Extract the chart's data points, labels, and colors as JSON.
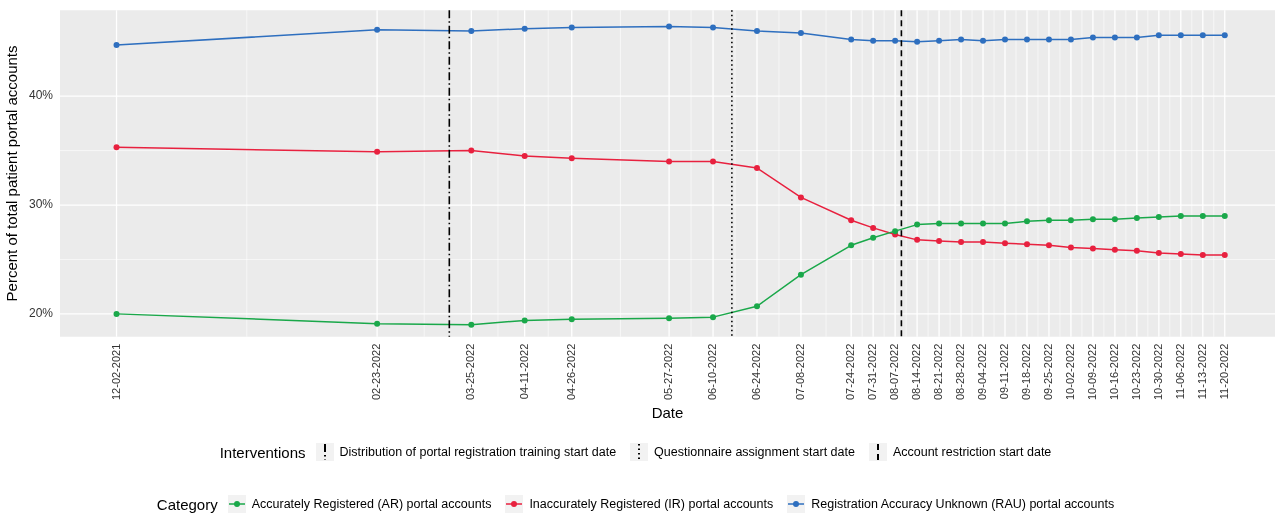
{
  "chart_data": {
    "type": "line",
    "xlabel": "Date",
    "ylabel": "Percent of total patient portal accounts",
    "legend_title": "Category",
    "legend": "bottom",
    "grid": true,
    "marker": "circle",
    "line_style": "solid",
    "annotations": [
      "Interventions"
    ],
    "x": [
      "2021-12-02",
      "2022-02-23",
      "2022-03-25",
      "2022-04-11",
      "2022-04-26",
      "2022-05-27",
      "2022-06-10",
      "2022-06-24",
      "2022-07-08",
      "2022-07-24",
      "2022-07-31",
      "2022-08-07",
      "2022-08-14",
      "2022-08-21",
      "2022-08-28",
      "2022-09-04",
      "2022-09-11",
      "2022-09-18",
      "2022-09-25",
      "2022-10-02",
      "2022-10-09",
      "2022-10-16",
      "2022-10-23",
      "2022-10-30",
      "2022-11-06",
      "2022-11-13",
      "2022-11-20"
    ],
    "xlim": [
      "2021-11-14",
      "2022-12-06"
    ],
    "xticks": [
      {
        "value": "2021-12-02",
        "label": "12-02-2021"
      },
      {
        "value": "2022-02-23",
        "label": "02-23-2022"
      },
      {
        "value": "2022-03-25",
        "label": "03-25-2022"
      },
      {
        "value": "2022-04-11",
        "label": "04-11-2022"
      },
      {
        "value": "2022-04-26",
        "label": "04-26-2022"
      },
      {
        "value": "2022-05-27",
        "label": "05-27-2022"
      },
      {
        "value": "2022-06-10",
        "label": "06-10-2022"
      },
      {
        "value": "2022-06-24",
        "label": "06-24-2022"
      },
      {
        "value": "2022-07-08",
        "label": "07-08-2022"
      },
      {
        "value": "2022-07-24",
        "label": "07-24-2022"
      },
      {
        "value": "2022-07-31",
        "label": "07-31-2022"
      },
      {
        "value": "2022-08-07",
        "label": "08-07-2022"
      },
      {
        "value": "2022-08-14",
        "label": "08-14-2022"
      },
      {
        "value": "2022-08-21",
        "label": "08-21-2022"
      },
      {
        "value": "2022-08-28",
        "label": "08-28-2022"
      },
      {
        "value": "2022-09-04",
        "label": "09-04-2022"
      },
      {
        "value": "2022-09-11",
        "label": "09-11-2022"
      },
      {
        "value": "2022-09-18",
        "label": "09-18-2022"
      },
      {
        "value": "2022-09-25",
        "label": "09-25-2022"
      },
      {
        "value": "2022-10-02",
        "label": "10-02-2022"
      },
      {
        "value": "2022-10-09",
        "label": "10-09-2022"
      },
      {
        "value": "2022-10-16",
        "label": "10-16-2022"
      },
      {
        "value": "2022-10-23",
        "label": "10-23-2022"
      },
      {
        "value": "2022-10-30",
        "label": "10-30-2022"
      },
      {
        "value": "2022-11-06",
        "label": "11-06-2022"
      },
      {
        "value": "2022-11-13",
        "label": "11-13-2022"
      },
      {
        "value": "2022-11-20",
        "label": "11-20-2022"
      }
    ],
    "ylim": [
      17.9,
      47.9
    ],
    "yticks": [
      {
        "value": 20,
        "label": "20%"
      },
      {
        "value": 30,
        "label": "30%"
      },
      {
        "value": 40,
        "label": "40%"
      }
    ],
    "series": [
      {
        "name": "Accurately Registered (AR) portal accounts",
        "color": "#1aa84a",
        "values": [
          20.0,
          19.1,
          19.0,
          19.4,
          19.5,
          19.6,
          19.7,
          20.7,
          23.6,
          26.3,
          27.0,
          27.6,
          28.2,
          28.3,
          28.3,
          28.3,
          28.3,
          28.5,
          28.6,
          28.6,
          28.7,
          28.7,
          28.8,
          28.9,
          29.0,
          29.0,
          29.0
        ]
      },
      {
        "name": "Inaccurately Registered (IR) portal accounts",
        "color": "#e8213f",
        "values": [
          35.3,
          34.9,
          35.0,
          34.5,
          34.3,
          34.0,
          34.0,
          33.4,
          30.7,
          28.6,
          27.9,
          27.3,
          26.8,
          26.7,
          26.6,
          26.6,
          26.5,
          26.4,
          26.3,
          26.1,
          26.0,
          25.9,
          25.8,
          25.6,
          25.5,
          25.4,
          25.4
        ]
      },
      {
        "name": "Registration Accuracy Unknown (RAU) portal accounts",
        "color": "#2e6fbf",
        "values": [
          44.7,
          46.1,
          46.0,
          46.2,
          46.3,
          46.4,
          46.3,
          46.0,
          45.8,
          45.2,
          45.1,
          45.1,
          45.0,
          45.1,
          45.2,
          45.1,
          45.2,
          45.2,
          45.2,
          45.2,
          45.4,
          45.4,
          45.4,
          45.6,
          45.6,
          45.6,
          45.6
        ]
      }
    ],
    "ref_lines": [
      {
        "axis": "x",
        "value": "2022-03-18",
        "label": "Distribution of portal registration training start date",
        "color": "#000000",
        "line_style": "dashdot"
      },
      {
        "axis": "x",
        "value": "2022-06-16",
        "label": "Questionnaire assignment start date",
        "color": "#000000",
        "line_style": "dotted"
      },
      {
        "axis": "x",
        "value": "2022-08-09",
        "label": "Account restriction start date",
        "color": "#000000",
        "line_style": "dashed"
      }
    ]
  }
}
